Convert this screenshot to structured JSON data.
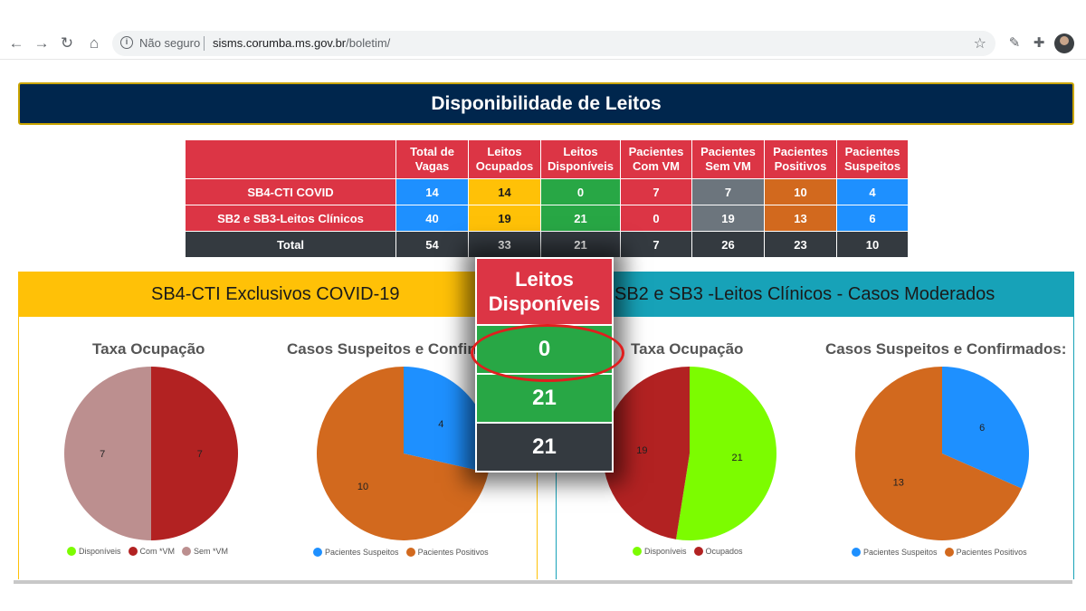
{
  "browser": {
    "security_label": "Não seguro",
    "url_host": "sisms.corumba.ms.gov.br",
    "url_path": "/boletim/"
  },
  "banner_title": "Disponibilidade de Leitos",
  "table": {
    "headers": [
      "Total de Vagas",
      "Leitos Ocupados",
      "Leitos Disponíveis",
      "Pacientes Com VM",
      "Pacientes Sem VM",
      "Pacientes Positivos",
      "Pacientes Suspeitos"
    ],
    "rows": [
      {
        "label": "SB4-CTI COVID",
        "values": [
          "14",
          "14",
          "0",
          "7",
          "7",
          "10",
          "4"
        ]
      },
      {
        "label": "SB2 e SB3-Leitos Clínicos",
        "values": [
          "40",
          "19",
          "21",
          "0",
          "19",
          "13",
          "6"
        ]
      },
      {
        "label": "Total",
        "values": [
          "54",
          "33",
          "21",
          "7",
          "26",
          "23",
          "10"
        ]
      }
    ]
  },
  "panels": {
    "left_title": "SB4-CTI Exclusivos COVID-19",
    "right_title": "SB2 e SB3 -Leitos Clínicos - Casos Moderados"
  },
  "chart_data": [
    {
      "type": "pie",
      "title": "Taxa Ocupação",
      "categories": [
        "Disponíveis",
        "Com *VM",
        "Sem *VM"
      ],
      "values": [
        0,
        7,
        7
      ],
      "colors": [
        "#7cfc00",
        "#b22222",
        "#bc8f8f"
      ]
    },
    {
      "type": "pie",
      "title": "Casos Suspeitos e Confirmados:",
      "categories": [
        "Pacientes Suspeitos",
        "Pacientes Positivos"
      ],
      "values": [
        4,
        10
      ],
      "colors": [
        "#1e90ff",
        "#d2691e"
      ]
    },
    {
      "type": "pie",
      "title": "Taxa Ocupação",
      "categories": [
        "Disponíveis",
        "Ocupados"
      ],
      "values": [
        21,
        19
      ],
      "colors": [
        "#7cfc00",
        "#b22222"
      ]
    },
    {
      "type": "pie",
      "title": "Casos Suspeitos e Confirmados:",
      "categories": [
        "Pacientes Suspeitos",
        "Pacientes Positivos"
      ],
      "values": [
        6,
        13
      ],
      "colors": [
        "#1e90ff",
        "#d2691e"
      ]
    }
  ],
  "overlay": {
    "header": "Leitos Disponíveis",
    "values": [
      "0",
      "21",
      "21"
    ]
  }
}
